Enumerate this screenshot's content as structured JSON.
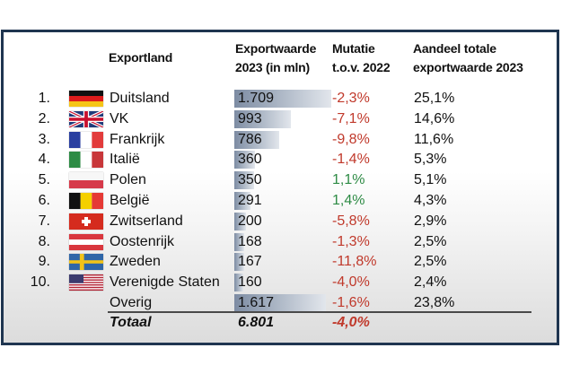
{
  "table": {
    "headers": {
      "country": "Exportland",
      "value_line1": "Exportwaarde",
      "value_line2": "2023 (in mln)",
      "mutation_line1": "Mutatie",
      "mutation_line2": "t.o.v. 2022",
      "share_line1": "Aandeel totale",
      "share_line2": "exportwaarde 2023"
    },
    "max_value": 1709,
    "rows": [
      {
        "rank": "1.",
        "flag": "germany-flag",
        "country": "Duitsland",
        "value": "1.709",
        "value_num": 1709,
        "mutation": "-2,3%",
        "trend": "neg",
        "share": "25,1%"
      },
      {
        "rank": "2.",
        "flag": "uk-flag",
        "country": "VK",
        "value": "993",
        "value_num": 993,
        "mutation": "-7,1%",
        "trend": "neg",
        "share": "14,6%"
      },
      {
        "rank": "3.",
        "flag": "france-flag",
        "country": "Frankrijk",
        "value": "786",
        "value_num": 786,
        "mutation": "-9,8%",
        "trend": "neg",
        "share": "11,6%"
      },
      {
        "rank": "4.",
        "flag": "italy-flag",
        "country": "Italië",
        "value": "360",
        "value_num": 360,
        "mutation": "-1,4%",
        "trend": "neg",
        "share": "5,3%"
      },
      {
        "rank": "5.",
        "flag": "poland-flag",
        "country": "Polen",
        "value": "350",
        "value_num": 350,
        "mutation": "1,1%",
        "trend": "pos",
        "share": "5,1%"
      },
      {
        "rank": "6.",
        "flag": "belgium-flag",
        "country": "België",
        "value": "291",
        "value_num": 291,
        "mutation": "1,4%",
        "trend": "pos",
        "share": "4,3%"
      },
      {
        "rank": "7.",
        "flag": "switzerland-flag",
        "country": "Zwitserland",
        "value": "200",
        "value_num": 200,
        "mutation": "-5,8%",
        "trend": "neg",
        "share": "2,9%"
      },
      {
        "rank": "8.",
        "flag": "austria-flag",
        "country": "Oostenrijk",
        "value": "168",
        "value_num": 168,
        "mutation": "-1,3%",
        "trend": "neg",
        "share": "2,5%"
      },
      {
        "rank": "9.",
        "flag": "sweden-flag",
        "country": "Zweden",
        "value": "167",
        "value_num": 167,
        "mutation": "-11,8%",
        "trend": "neg",
        "share": "2,5%"
      },
      {
        "rank": "10.",
        "flag": "usa-flag",
        "country": "Verenigde Staten",
        "value": "160",
        "value_num": 160,
        "mutation": "-4,0%",
        "trend": "neg",
        "share": "2,4%"
      },
      {
        "rank": "",
        "flag": "",
        "country": "Overig",
        "value": "1.617",
        "value_num": 1617,
        "mutation": "-1,6%",
        "trend": "neg",
        "share": "23,8%"
      }
    ],
    "total": {
      "label": "Totaal",
      "value": "6.801",
      "mutation": "-4,0%"
    }
  },
  "colors": {
    "negative": "#c0392b",
    "positive": "#2e8b45",
    "frame": "#1f3550"
  }
}
